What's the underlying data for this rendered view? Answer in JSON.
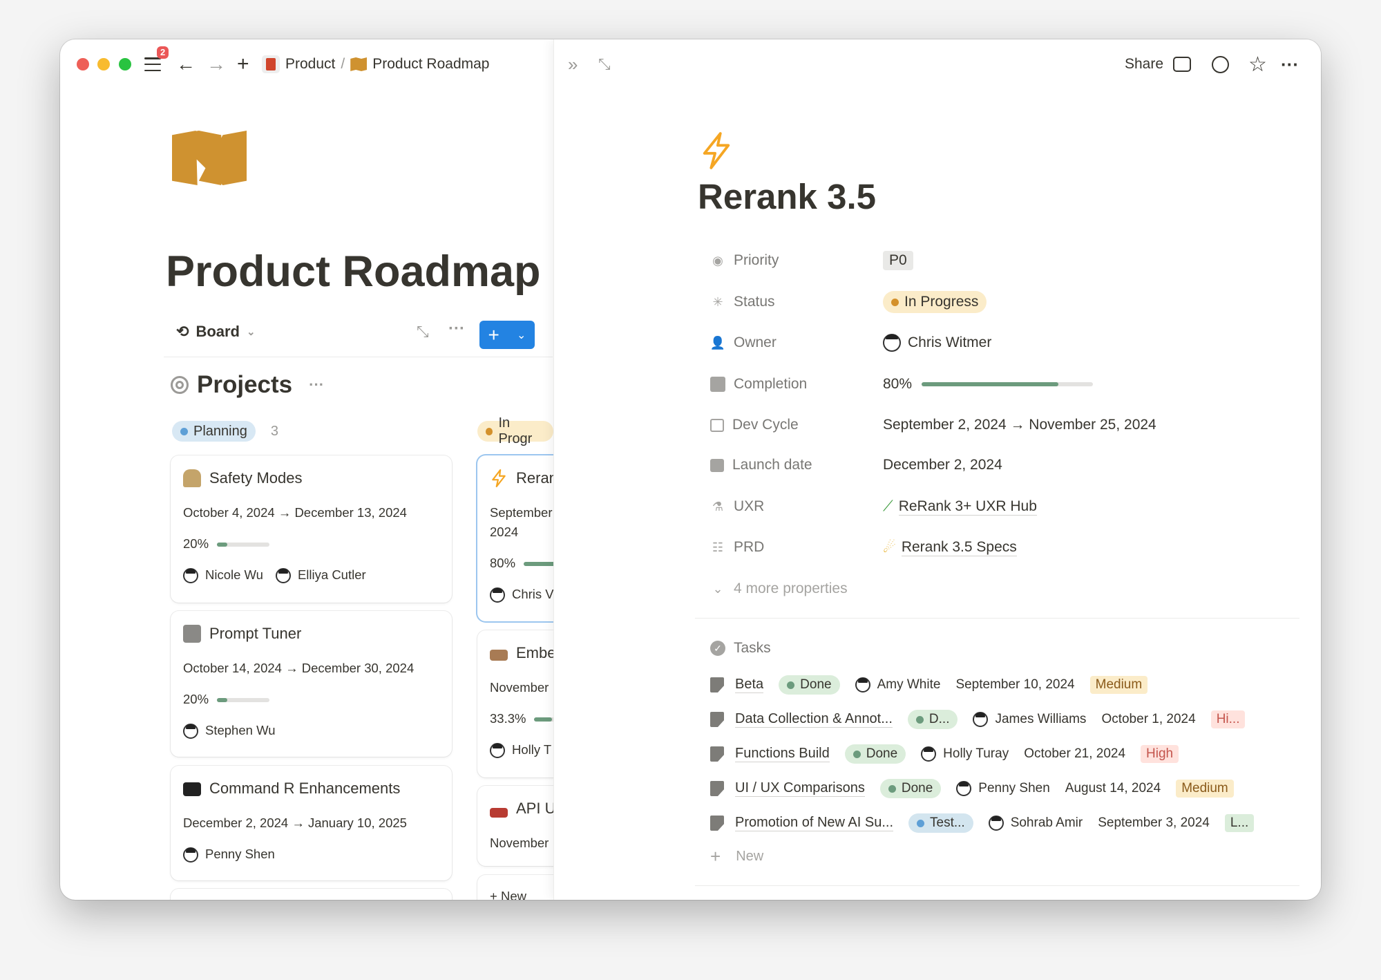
{
  "titlebar": {
    "badge": "2",
    "breadcrumb": [
      "Product",
      "/",
      "Product Roadmap"
    ],
    "share": "Share"
  },
  "page": {
    "title": "Product Roadmap",
    "view": "Board",
    "section": "Projects"
  },
  "board": {
    "columns": [
      {
        "label": "Planning",
        "count": "3",
        "color": "#5e9fd6",
        "bg": "#d8e8f4"
      },
      {
        "label": "In Progr",
        "color": "#d4912b",
        "bg": "#fbecc9"
      }
    ],
    "planning": [
      {
        "title": "Safety Modes",
        "dates": "October 4, 2024 → December 13, 2024",
        "pct_label": "20%",
        "pct": 20,
        "people": [
          "Nicole Wu",
          "Elliya Cutler"
        ],
        "icon": "lock-icon"
      },
      {
        "title": "Prompt Tuner",
        "dates": "October 14, 2024 → December 30, 2024",
        "pct_label": "20%",
        "pct": 20,
        "people": [
          "Stephen Wu"
        ],
        "icon": "control-knobs-icon"
      },
      {
        "title": "Command R Enhancements",
        "dates": "December 2, 2024 → January 10, 2025",
        "people": [
          "Penny Shen"
        ],
        "icon": "pirate-flag-icon"
      }
    ],
    "in_progress": [
      {
        "title": "Reran",
        "dates1": "September",
        "dates2": "2024",
        "pct_label": "80%",
        "pct": 80,
        "person": "Chris V",
        "icon": "lightning-icon"
      },
      {
        "title": "Embe",
        "dates1": "November",
        "pct_label": "33.3%",
        "pct": 33.3,
        "person": "Holly T",
        "icon": "bed-icon"
      },
      {
        "title": "API U",
        "dates1": "November",
        "icon": "aerial-tramway-icon"
      }
    ],
    "new_label": "New"
  },
  "detail": {
    "title": "Rerank 3.5",
    "properties": {
      "priority": {
        "label": "Priority",
        "value": "P0"
      },
      "status": {
        "label": "Status",
        "value": "In Progress",
        "color": "#d4912b"
      },
      "owner": {
        "label": "Owner",
        "value": "Chris Witmer"
      },
      "completion": {
        "label": "Completion",
        "value": "80%",
        "pct": 80
      },
      "dev_cycle": {
        "label": "Dev Cycle",
        "value": "September 2, 2024 → November 25, 2024"
      },
      "launch": {
        "label": "Launch date",
        "value": "December 2, 2024"
      },
      "uxr": {
        "label": "UXR",
        "value": "ReRank 3+ UXR Hub"
      },
      "prd": {
        "label": "PRD",
        "value": "Rerank 3.5 Specs"
      },
      "more": "4 more properties"
    },
    "tasks_label": "Tasks",
    "tasks": [
      {
        "title": "Beta",
        "status": "Done",
        "status_type": "done",
        "person": "Amy White",
        "date": "September 10, 2024",
        "priority": "Medium",
        "priority_type": "medium"
      },
      {
        "title": "Data Collection & Annot...",
        "status": "D...",
        "status_type": "done",
        "person": "James Williams",
        "date": "October 1, 2024",
        "priority": "Hi...",
        "priority_type": "high"
      },
      {
        "title": "Functions Build",
        "status": "Done",
        "status_type": "done",
        "person": "Holly Turay",
        "date": "October 21, 2024",
        "priority": "High",
        "priority_type": "high"
      },
      {
        "title": "UI / UX Comparisons",
        "status": "Done",
        "status_type": "done",
        "person": "Penny Shen",
        "date": "August 14, 2024",
        "priority": "Medium",
        "priority_type": "medium"
      },
      {
        "title": "Promotion of New AI Su...",
        "status": "Test...",
        "status_type": "testing",
        "person": "Sohrab Amir",
        "date": "September 3, 2024",
        "priority": "L...",
        "priority_type": "low"
      }
    ],
    "new_label": "New"
  }
}
